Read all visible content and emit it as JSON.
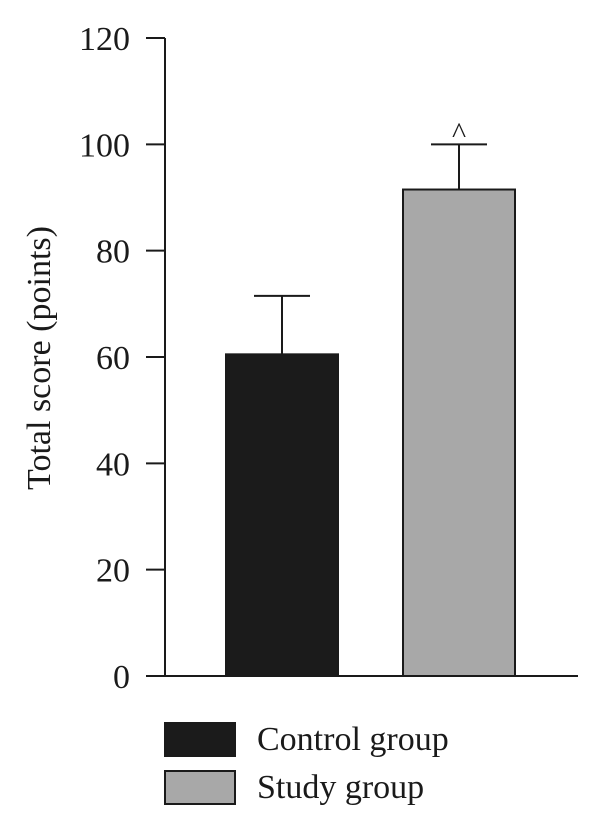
{
  "chart_data": {
    "type": "bar",
    "title": "",
    "xlabel": "",
    "ylabel": "Total score (points)",
    "ylim": [
      0,
      120
    ],
    "yticks": [
      0,
      20,
      40,
      60,
      80,
      100,
      120
    ],
    "grid": false,
    "legend_position": "bottom",
    "categories": [
      "Control group",
      "Study group"
    ],
    "values": [
      60.5,
      91.5
    ],
    "errors": [
      11,
      8.5
    ],
    "colors": [
      "#1b1b1b",
      "#a8a8a8"
    ],
    "annotations": [
      {
        "category": "Study group",
        "text": "^"
      }
    ],
    "legend": [
      {
        "label": "Control group",
        "color": "#1b1b1b"
      },
      {
        "label": "Study group",
        "color": "#a8a8a8"
      }
    ]
  }
}
